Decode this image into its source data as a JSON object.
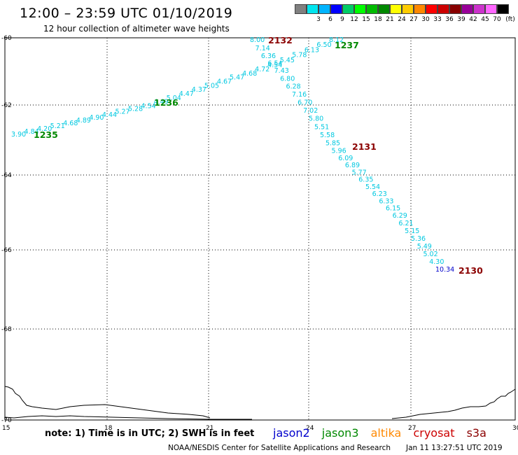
{
  "title": "12:00 – 23:59 UTC 01/10/2019",
  "subtitle": "12 hour collection of altimeter wave heights",
  "legend": {
    "unit": "(ft)",
    "items": [
      {
        "color": "#808080",
        "label": ""
      },
      {
        "color": "#00e5ee",
        "label": "3"
      },
      {
        "color": "#00b4ff",
        "label": "6"
      },
      {
        "color": "#0000ff",
        "label": "9"
      },
      {
        "color": "#00cc66",
        "label": "12"
      },
      {
        "color": "#00ff00",
        "label": "15"
      },
      {
        "color": "#00bb00",
        "label": "18"
      },
      {
        "color": "#008800",
        "label": "21"
      },
      {
        "color": "#ffff00",
        "label": "24"
      },
      {
        "color": "#ffcc00",
        "label": "27"
      },
      {
        "color": "#ff8800",
        "label": "30"
      },
      {
        "color": "#ff0000",
        "label": "33"
      },
      {
        "color": "#cc0000",
        "label": "36"
      },
      {
        "color": "#880000",
        "label": "39"
      },
      {
        "color": "#990099",
        "label": "42"
      },
      {
        "color": "#cc33cc",
        "label": "45"
      },
      {
        "color": "#ff66ff",
        "label": "70"
      },
      {
        "color": "#000000",
        "label": ""
      }
    ]
  },
  "axes": {
    "lon_ticks": [
      15,
      18,
      21,
      24,
      27,
      30
    ],
    "lat_ticks": [
      -60,
      -62,
      -64,
      -66,
      -68,
      -70
    ]
  },
  "passes": [
    {
      "id": "2132",
      "color": "#8b0000"
    },
    {
      "id": "1237",
      "color": "#008800"
    },
    {
      "id": "1236",
      "color": "#008800"
    },
    {
      "id": "1235",
      "color": "#008800"
    },
    {
      "id": "2131",
      "color": "#8b0000"
    },
    {
      "id": "2130",
      "color": "#8b0000"
    }
  ],
  "track1_values": [
    "3.90",
    "4.84",
    "4.20",
    "5.21",
    "4.68",
    "4.89",
    "4.90",
    "4.44",
    "5.27",
    "5.28",
    "4.54",
    "4.49",
    "5.04",
    "4.47",
    "4.37",
    "5.05",
    "4.67",
    "5.47",
    "4.68",
    "4.72",
    "4.54",
    "5.45",
    "5.78",
    "6.13",
    "6.50",
    "8.12"
  ],
  "track2_values": [
    "8.00",
    "7.14",
    "6.36",
    "6.54",
    "7.43",
    "6.80",
    "6.28",
    "7.16",
    "6.70",
    "7.02",
    "5.80",
    "5.51",
    "5.58",
    "5.85",
    "5.96",
    "6.09",
    "6.89",
    "5.77",
    "6.35",
    "5.54",
    "6.23",
    "6.33",
    "6.15",
    "6.29",
    "6.21",
    "5.15",
    "5.36",
    "5.49",
    "5.02",
    "4.30",
    "10.34"
  ],
  "note": "note: 1) Time is in UTC; 2) SWH is in feet",
  "satellites": [
    {
      "name": "jason2",
      "color": "#0000cc"
    },
    {
      "name": "jason3",
      "color": "#008800"
    },
    {
      "name": "altika",
      "color": "#ff8800"
    },
    {
      "name": "cryosat",
      "color": "#cc0000"
    },
    {
      "name": "s3a",
      "color": "#8b0000"
    }
  ],
  "credit": "NOAA/NESDIS Center for Satellite Applications and Research",
  "timestamp": "Jan 11 13:27:51 UTC 2019"
}
